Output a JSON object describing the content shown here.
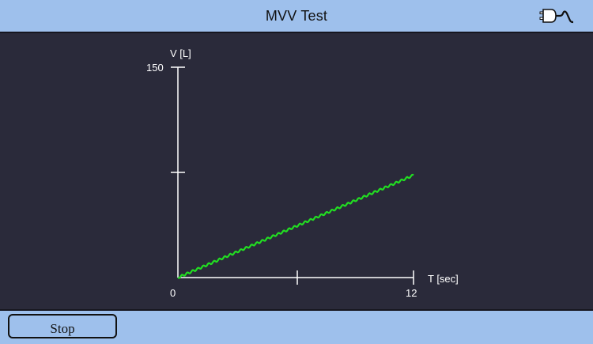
{
  "header": {
    "title": "MVV Test",
    "power_icon": "plug-icon"
  },
  "footer": {
    "stop_label": "Stop"
  },
  "colors": {
    "bar": "#9ec0ec",
    "background": "#2a2a3a",
    "axis": "#ffffff",
    "trace": "#22dd22"
  },
  "chart_data": {
    "type": "line",
    "xlabel": "T [sec]",
    "ylabel": "V [L]",
    "xlim": [
      0,
      12
    ],
    "ylim": [
      0,
      150
    ],
    "x_tick_labels": [
      "0",
      "12"
    ],
    "y_tick_labels": [
      "150"
    ],
    "series": [
      {
        "x": [
          0,
          12
        ],
        "y": [
          0,
          73
        ]
      }
    ],
    "trace_style": "wavy"
  }
}
